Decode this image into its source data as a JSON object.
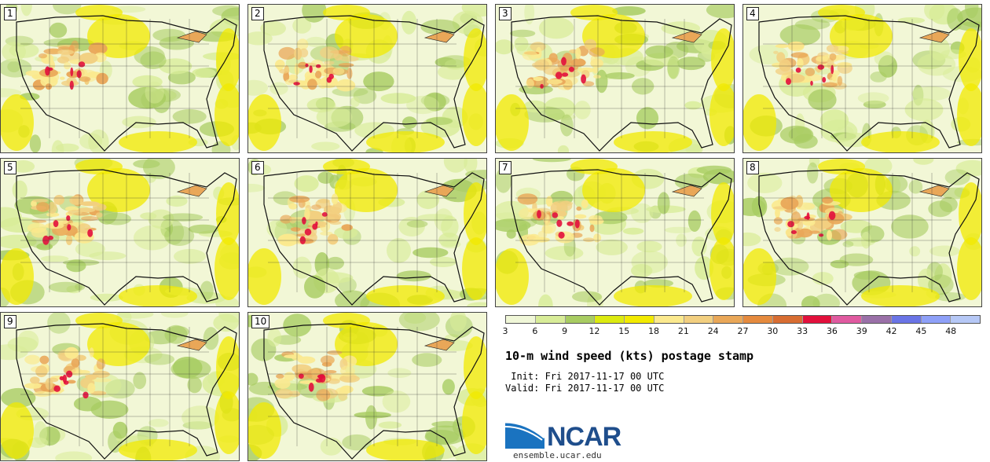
{
  "panels": [
    {
      "label": "1"
    },
    {
      "label": "2"
    },
    {
      "label": "3"
    },
    {
      "label": "4"
    },
    {
      "label": "5"
    },
    {
      "label": "6"
    },
    {
      "label": "7"
    },
    {
      "label": "8"
    },
    {
      "label": "9"
    },
    {
      "label": "10"
    }
  ],
  "colorbar": {
    "ticks": [
      "3",
      "6",
      "9",
      "12",
      "15",
      "18",
      "21",
      "24",
      "27",
      "30",
      "33",
      "36",
      "39",
      "42",
      "45",
      "48"
    ],
    "colors": [
      "#f0f7d8",
      "#d8ec98",
      "#a8cc62",
      "#dcea10",
      "#f2ea00",
      "#fbe98e",
      "#f2cf80",
      "#e9a758",
      "#e58a3e",
      "#d86d32",
      "#e2103c",
      "#e05aa0",
      "#9a70a8",
      "#6a74e6",
      "#8ea0f8",
      "#b6c8f6"
    ]
  },
  "map": {
    "base_color": "#f2f7d6",
    "shades": [
      "#d8ec98",
      "#a8cc62",
      "#dcea10",
      "#f2ea00",
      "#fbe98e",
      "#f2cf80",
      "#e9a758",
      "#d86d32",
      "#e2103c"
    ]
  },
  "title": "10-m wind speed (kts) postage stamp",
  "init": " Init: Fri 2017-11-17 00 UTC",
  "valid": "Valid: Fri 2017-11-17 00 UTC",
  "logo": {
    "text": "NCAR",
    "url": "ensemble.ucar.edu",
    "color": "#1f4e8c",
    "accent": "#1a73c0"
  }
}
